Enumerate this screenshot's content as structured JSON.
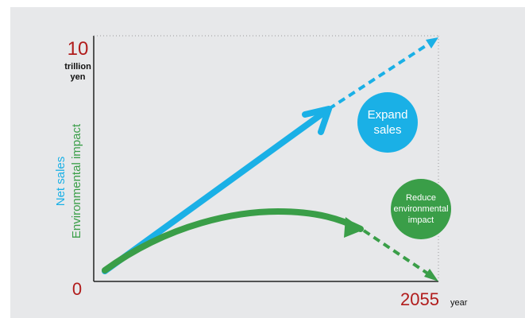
{
  "y_max_value": "10",
  "y_unit_line1": "trillion",
  "y_unit_line2": "yen",
  "y_min_value": "0",
  "axis_title_sales": "Net sales",
  "axis_title_env": "Environmental impact",
  "x_end_value": "2055",
  "x_unit": "year",
  "bubble_sales": [
    "Expand",
    "sales"
  ],
  "bubble_env": [
    "Reduce",
    "environmental",
    "impact"
  ],
  "colors": {
    "sales": "#1ab0e6",
    "environment": "#3a9e48",
    "accent_red": "#b11c1c",
    "panel": "#e7e8ea"
  }
}
